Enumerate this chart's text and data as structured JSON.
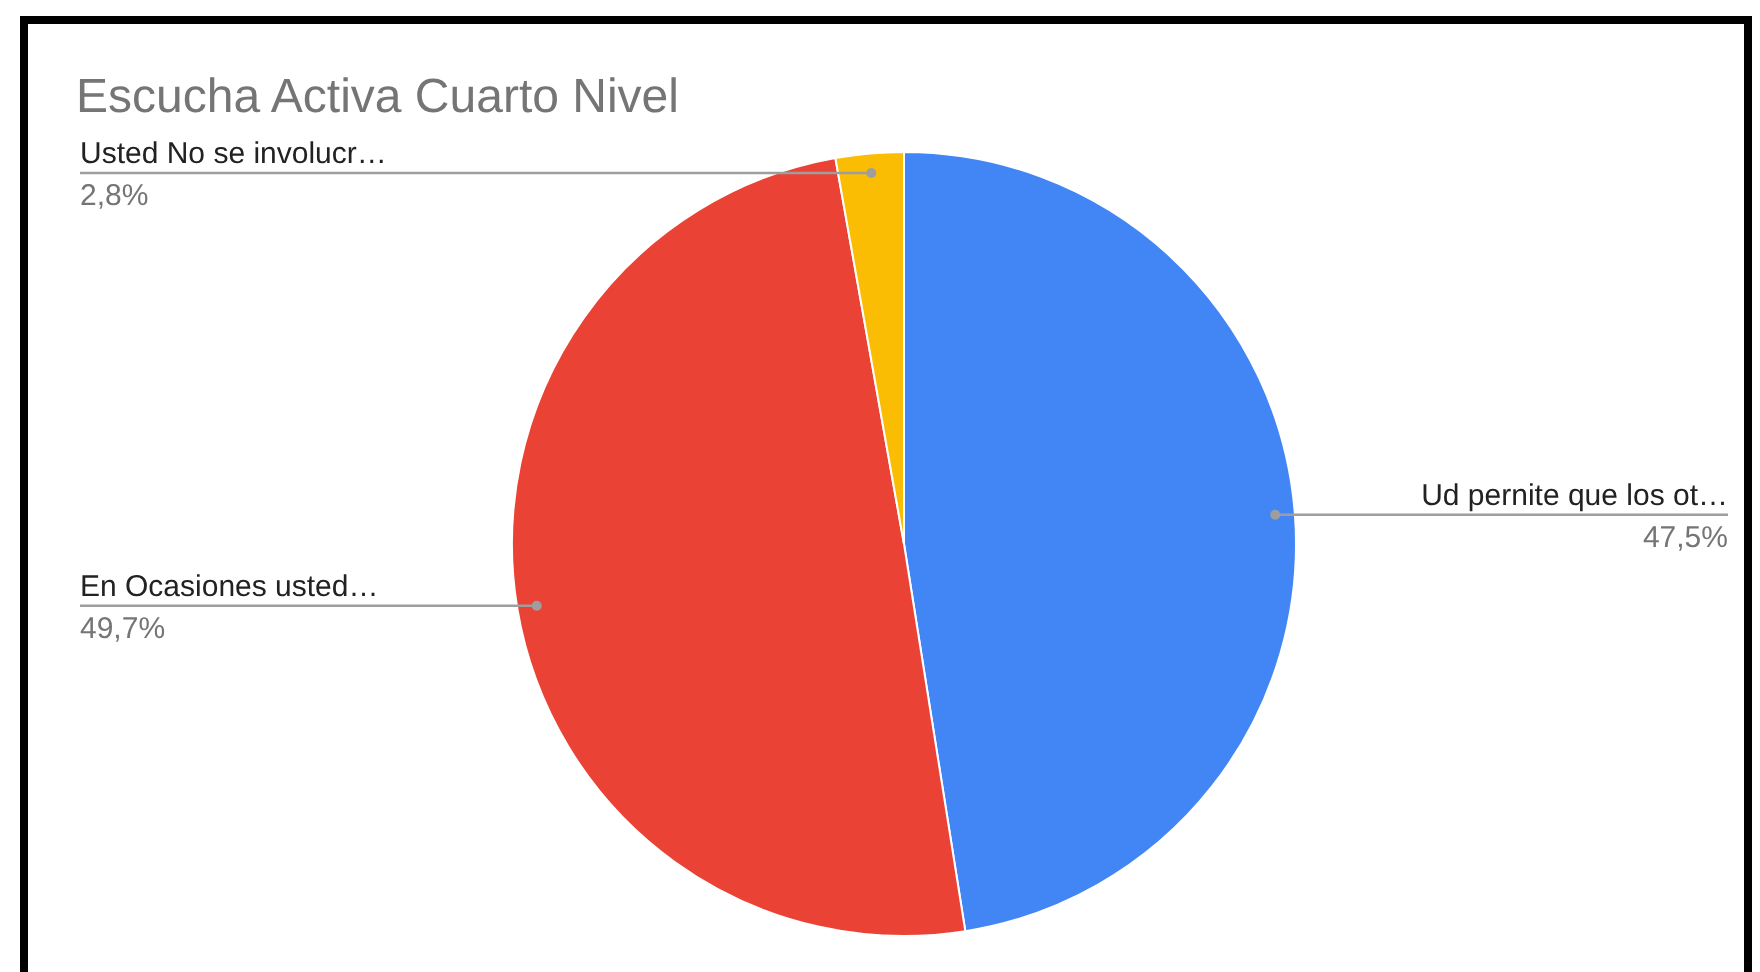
{
  "chart_data": {
    "type": "pie",
    "title": "Escucha Activa Cuarto Nivel",
    "categories": [
      "Ud pernite que los ot…",
      "En Ocasiones usted…",
      "Usted No se involucr…"
    ],
    "values": [
      47.5,
      49.7,
      2.8
    ],
    "colors": [
      "#4285f4",
      "#ea4335",
      "#fbbc04"
    ],
    "value_labels": [
      "47,5%",
      "49,7%",
      "2,8%"
    ]
  }
}
